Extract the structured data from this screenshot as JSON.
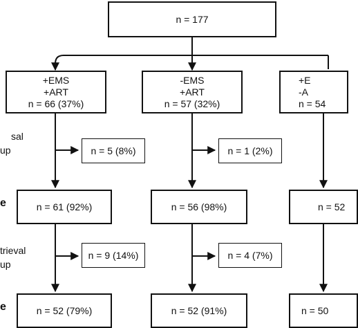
{
  "total": {
    "text": "n = 177"
  },
  "groups": [
    {
      "line1": "+EMS",
      "line2": "+ART",
      "count": "n = 66 (37%)",
      "lost_first": "n = 5 (8%)",
      "mid": "n = 61 (92%)",
      "lost_second": "n = 9 (14%)",
      "final": "n = 52 (79%)"
    },
    {
      "line1": "-EMS",
      "line2": "+ART",
      "count": "n = 57 (32%)",
      "lost_first": "n = 1 (2%)",
      "mid": "n = 56 (98%)",
      "lost_second": "n = 4 (7%)",
      "final": "n = 52 (91%)"
    },
    {
      "line1": "+E",
      "line2": "-A",
      "count": "n = 54",
      "mid": "n = 52",
      "final": "n = 50"
    }
  ],
  "left_labels": {
    "first_fragment_top": "sal",
    "first_fragment_bottom": "up",
    "mid_fragment": "e",
    "second_fragment_top": "trieval",
    "second_fragment_bottom": "up",
    "final_fragment": "e"
  }
}
